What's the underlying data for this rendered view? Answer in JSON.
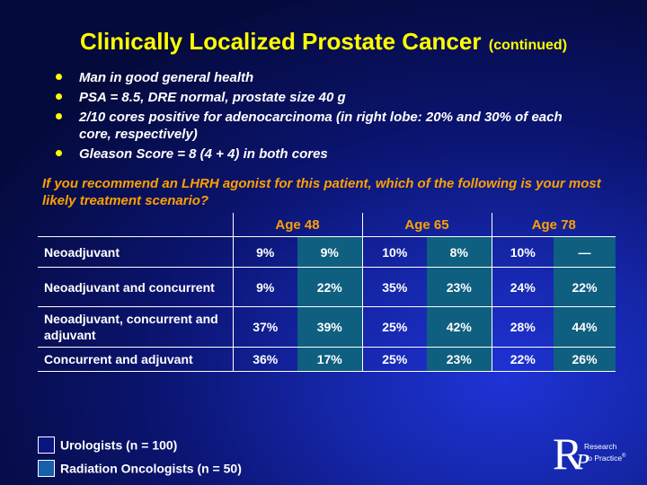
{
  "slide": {
    "title": "Clinically Localized Prostate Cancer",
    "title_suffix": "(continued)",
    "bullets": [
      "Man in good general health",
      "PSA = 8.5, DRE normal, prostate size 40 g",
      "2/10 cores positive for adenocarcinoma (in right lobe: 20% and 30% of each core, respectively)",
      "Gleason Score = 8 (4 + 4) in both cores"
    ],
    "question": "If you recommend an LHRH agonist for this patient, which of the following is your most likely treatment scenario?"
  },
  "table": {
    "age_headers": [
      "Age 48",
      "Age 65",
      "Age 78"
    ],
    "rows": [
      {
        "label": "Neoadjuvant",
        "values": [
          "9%",
          "9%",
          "10%",
          "8%",
          "10%",
          "—"
        ]
      },
      {
        "label": "Neoadjuvant and concurrent",
        "values": [
          "9%",
          "22%",
          "35%",
          "23%",
          "24%",
          "22%"
        ]
      },
      {
        "label": "Neoadjuvant, concurrent and adjuvant",
        "values": [
          "37%",
          "39%",
          "25%",
          "42%",
          "28%",
          "44%"
        ]
      },
      {
        "label": "Concurrent and adjuvant",
        "values": [
          "36%",
          "17%",
          "25%",
          "23%",
          "22%",
          "26%"
        ]
      }
    ]
  },
  "legend": [
    {
      "label": "Urologists  (n = 100)",
      "color": "#0a1680"
    },
    {
      "label": "Radiation Oncologists  (n = 50)",
      "color": "#1560a8"
    }
  ],
  "logo": {
    "letter_r": "R",
    "letter_p": "P",
    "line1": "Research",
    "line2": "To Practice",
    "trademark": "®"
  },
  "colors": {
    "title": "#ffff00",
    "question": "#ffa000",
    "age_header": "#ffa000",
    "rad_cell": "#0f5f80"
  }
}
